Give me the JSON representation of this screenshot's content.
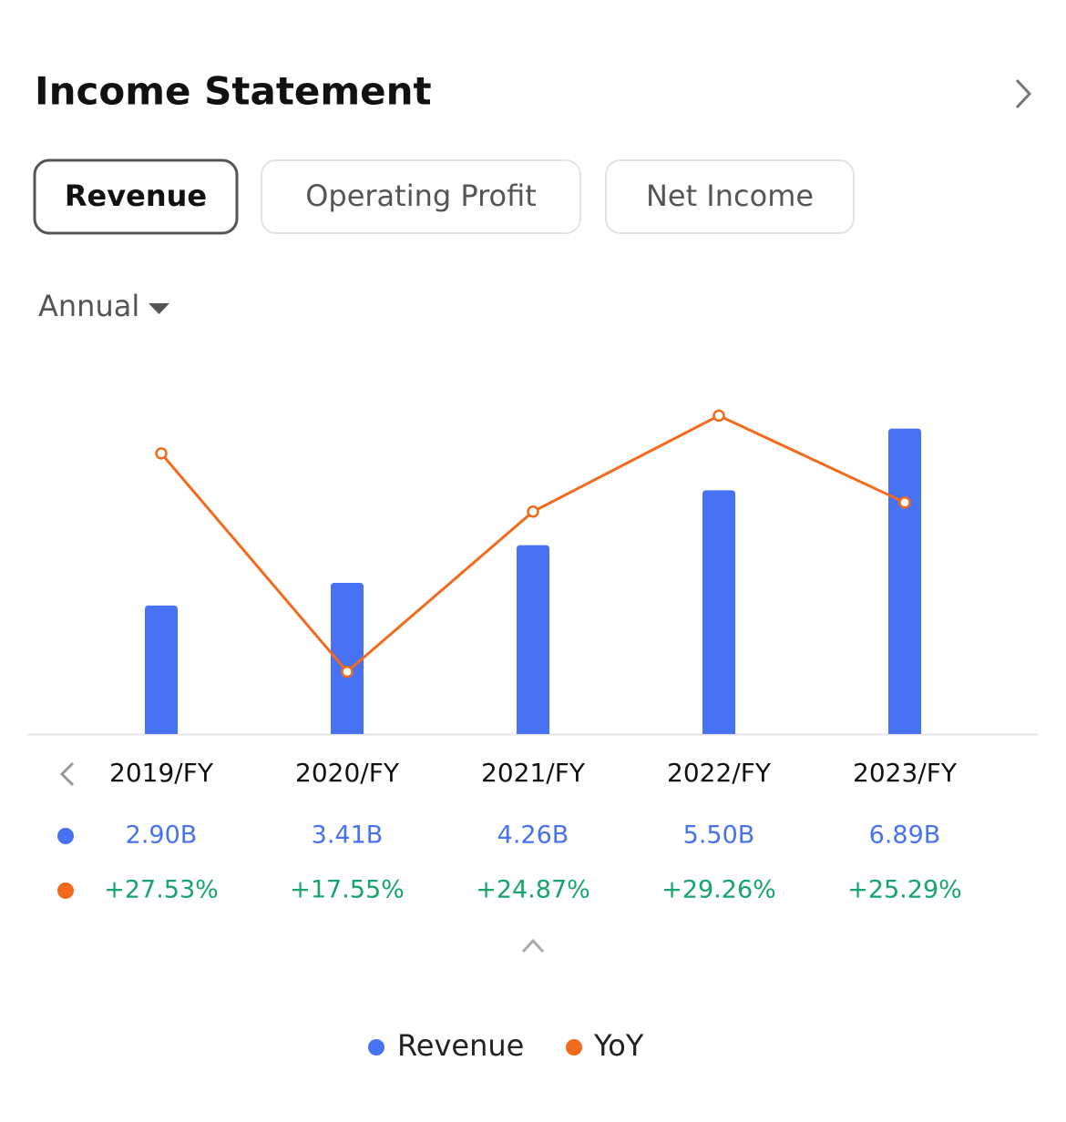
{
  "header": {
    "title": "Income Statement"
  },
  "tabs": [
    "Revenue",
    "Operating Profit",
    "Net Income"
  ],
  "period": "Annual",
  "chart_data": {
    "type": "bar-line",
    "categories": [
      "2019/FY",
      "2020/FY",
      "2021/FY",
      "2022/FY",
      "2023/FY"
    ],
    "series": [
      {
        "name": "Revenue",
        "color": "#4672f3",
        "values": [
          2.9,
          3.41,
          4.26,
          5.5,
          6.89
        ],
        "value_labels": [
          "2.90B",
          "3.41B",
          "4.26B",
          "5.50B",
          "6.89B"
        ]
      },
      {
        "name": "YoY",
        "color": "#f26a1b",
        "axis": "y2",
        "values": [
          27.53,
          17.55,
          24.87,
          29.26,
          25.29
        ],
        "value_labels": [
          "+27.53%",
          "+17.55%",
          "+24.87%",
          "+29.26%",
          "+25.29%"
        ],
        "label_color": "#17a56b"
      }
    ],
    "ylim": [
      0,
      7.5
    ],
    "y2lim": [
      14.7,
      29.9
    ]
  }
}
